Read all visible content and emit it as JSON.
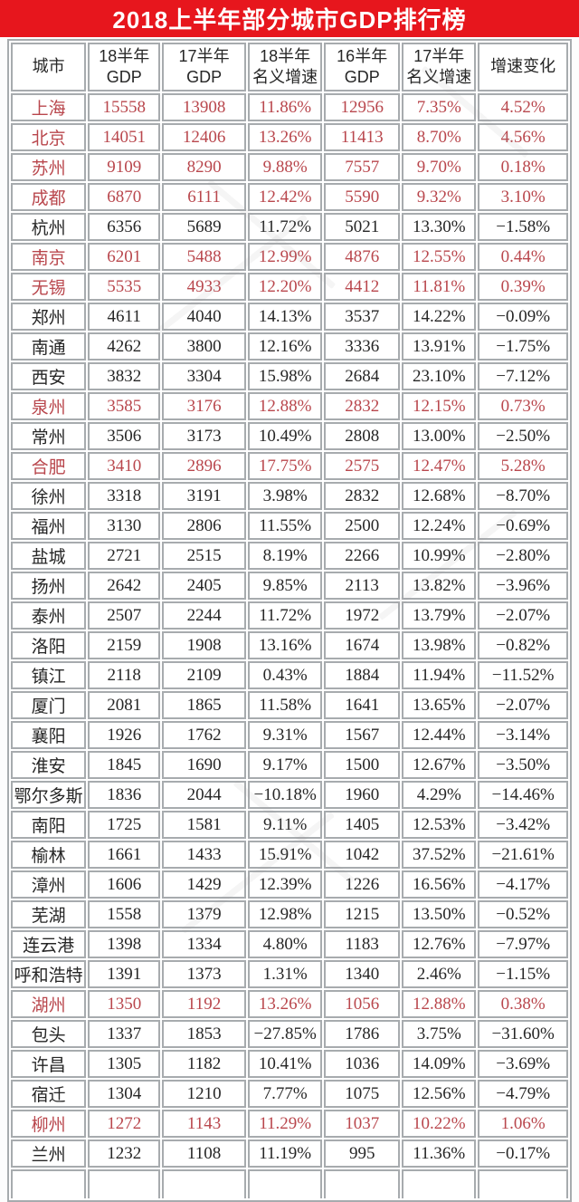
{
  "title": "2018上半年部分城市GDP排行榜",
  "colors": {
    "title_bar_bg": "#e7161d",
    "title_text": "#ffffff",
    "highlight_text": "#b9474d",
    "normal_text": "#262626",
    "cell_border": "#a7abae"
  },
  "chart_data": {
    "type": "table",
    "title": "2018上半年部分城市GDP排行榜",
    "columns": [
      "城市",
      "18半年GDP",
      "17半年GDP",
      "18半年名义增速",
      "16半年GDP",
      "17半年名义增速",
      "增速变化"
    ],
    "header_lines": [
      [
        "城市"
      ],
      [
        "18半年",
        "GDP"
      ],
      [
        "17半年GDP"
      ],
      [
        "18半年",
        "名义增速"
      ],
      [
        "16半年",
        "GDP"
      ],
      [
        "17半年",
        "名义增速"
      ],
      [
        "增速变化"
      ]
    ],
    "rows": [
      {
        "city": "上海",
        "values": [
          "15558",
          "13908",
          "11.86%",
          "12956",
          "7.35%",
          "4.52%"
        ],
        "highlight": true
      },
      {
        "city": "北京",
        "values": [
          "14051",
          "12406",
          "13.26%",
          "11413",
          "8.70%",
          "4.56%"
        ],
        "highlight": true
      },
      {
        "city": "苏州",
        "values": [
          "9109",
          "8290",
          "9.88%",
          "7557",
          "9.70%",
          "0.18%"
        ],
        "highlight": true
      },
      {
        "city": "成都",
        "values": [
          "6870",
          "6111",
          "12.42%",
          "5590",
          "9.32%",
          "3.10%"
        ],
        "highlight": true
      },
      {
        "city": "杭州",
        "values": [
          "6356",
          "5689",
          "11.72%",
          "5021",
          "13.30%",
          "−1.58%"
        ],
        "highlight": false
      },
      {
        "city": "南京",
        "values": [
          "6201",
          "5488",
          "12.99%",
          "4876",
          "12.55%",
          "0.44%"
        ],
        "highlight": true
      },
      {
        "city": "无锡",
        "values": [
          "5535",
          "4933",
          "12.20%",
          "4412",
          "11.81%",
          "0.39%"
        ],
        "highlight": true
      },
      {
        "city": "郑州",
        "values": [
          "4611",
          "4040",
          "14.13%",
          "3537",
          "14.22%",
          "−0.09%"
        ],
        "highlight": false
      },
      {
        "city": "南通",
        "values": [
          "4262",
          "3800",
          "12.16%",
          "3336",
          "13.91%",
          "−1.75%"
        ],
        "highlight": false
      },
      {
        "city": "西安",
        "values": [
          "3832",
          "3304",
          "15.98%",
          "2684",
          "23.10%",
          "−7.12%"
        ],
        "highlight": false
      },
      {
        "city": "泉州",
        "values": [
          "3585",
          "3176",
          "12.88%",
          "2832",
          "12.15%",
          "0.73%"
        ],
        "highlight": true
      },
      {
        "city": "常州",
        "values": [
          "3506",
          "3173",
          "10.49%",
          "2808",
          "13.00%",
          "−2.50%"
        ],
        "highlight": false
      },
      {
        "city": "合肥",
        "values": [
          "3410",
          "2896",
          "17.75%",
          "2575",
          "12.47%",
          "5.28%"
        ],
        "highlight": true
      },
      {
        "city": "徐州",
        "values": [
          "3318",
          "3191",
          "3.98%",
          "2832",
          "12.68%",
          "−8.70%"
        ],
        "highlight": false
      },
      {
        "city": "福州",
        "values": [
          "3130",
          "2806",
          "11.55%",
          "2500",
          "12.24%",
          "−0.69%"
        ],
        "highlight": false
      },
      {
        "city": "盐城",
        "values": [
          "2721",
          "2515",
          "8.19%",
          "2266",
          "10.99%",
          "−2.80%"
        ],
        "highlight": false
      },
      {
        "city": "扬州",
        "values": [
          "2642",
          "2405",
          "9.85%",
          "2113",
          "13.82%",
          "−3.96%"
        ],
        "highlight": false
      },
      {
        "city": "泰州",
        "values": [
          "2507",
          "2244",
          "11.72%",
          "1972",
          "13.79%",
          "−2.07%"
        ],
        "highlight": false
      },
      {
        "city": "洛阳",
        "values": [
          "2159",
          "1908",
          "13.16%",
          "1674",
          "13.98%",
          "−0.82%"
        ],
        "highlight": false
      },
      {
        "city": "镇江",
        "values": [
          "2118",
          "2109",
          "0.43%",
          "1884",
          "11.94%",
          "−11.52%"
        ],
        "highlight": false
      },
      {
        "city": "厦门",
        "values": [
          "2081",
          "1865",
          "11.58%",
          "1641",
          "13.65%",
          "−2.07%"
        ],
        "highlight": false
      },
      {
        "city": "襄阳",
        "values": [
          "1926",
          "1762",
          "9.31%",
          "1567",
          "12.44%",
          "−3.14%"
        ],
        "highlight": false
      },
      {
        "city": "淮安",
        "values": [
          "1845",
          "1690",
          "9.17%",
          "1500",
          "12.67%",
          "−3.50%"
        ],
        "highlight": false
      },
      {
        "city": "鄂尔多斯",
        "values": [
          "1836",
          "2044",
          "−10.18%",
          "1960",
          "4.29%",
          "−14.46%"
        ],
        "highlight": false
      },
      {
        "city": "南阳",
        "values": [
          "1725",
          "1581",
          "9.11%",
          "1405",
          "12.53%",
          "−3.42%"
        ],
        "highlight": false
      },
      {
        "city": "榆林",
        "values": [
          "1661",
          "1433",
          "15.91%",
          "1042",
          "37.52%",
          "−21.61%"
        ],
        "highlight": false
      },
      {
        "city": "漳州",
        "values": [
          "1606",
          "1429",
          "12.39%",
          "1226",
          "16.56%",
          "−4.17%"
        ],
        "highlight": false
      },
      {
        "city": "芜湖",
        "values": [
          "1558",
          "1379",
          "12.98%",
          "1215",
          "13.50%",
          "−0.52%"
        ],
        "highlight": false
      },
      {
        "city": "连云港",
        "values": [
          "1398",
          "1334",
          "4.80%",
          "1183",
          "12.76%",
          "−7.97%"
        ],
        "highlight": false
      },
      {
        "city": "呼和浩特",
        "values": [
          "1391",
          "1373",
          "1.31%",
          "1340",
          "2.46%",
          "−1.15%"
        ],
        "highlight": false
      },
      {
        "city": "湖州",
        "values": [
          "1350",
          "1192",
          "13.26%",
          "1056",
          "12.88%",
          "0.38%"
        ],
        "highlight": true
      },
      {
        "city": "包头",
        "values": [
          "1337",
          "1853",
          "−27.85%",
          "1786",
          "3.75%",
          "−31.60%"
        ],
        "highlight": false
      },
      {
        "city": "许昌",
        "values": [
          "1305",
          "1182",
          "10.41%",
          "1036",
          "14.09%",
          "−3.69%"
        ],
        "highlight": false
      },
      {
        "city": "宿迁",
        "values": [
          "1304",
          "1210",
          "7.77%",
          "1075",
          "12.56%",
          "−4.79%"
        ],
        "highlight": false
      },
      {
        "city": "柳州",
        "values": [
          "1272",
          "1143",
          "11.29%",
          "1037",
          "10.22%",
          "1.06%"
        ],
        "highlight": true
      },
      {
        "city": "兰州",
        "values": [
          "1232",
          "1108",
          "11.19%",
          "995",
          "11.36%",
          "−0.17%"
        ],
        "highlight": false
      }
    ]
  }
}
